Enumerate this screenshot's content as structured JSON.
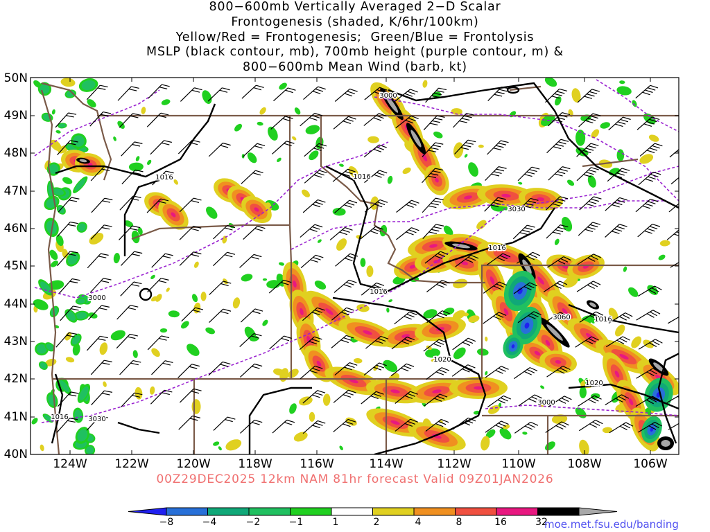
{
  "title_lines": [
    "800−600mb Vertically Averaged 2−D Scalar",
    "Frontogenesis (shaded, K/6hr/100km)",
    "Yellow/Red = Frontogenesis;  Green/Blue = Frontolysis",
    "MSLP (black contour, mb), 700mb height (purple contour, m) &",
    "800−600mb Mean Wind (barb, kt)"
  ],
  "lat_labels": [
    "50N",
    "49N",
    "48N",
    "47N",
    "46N",
    "45N",
    "44N",
    "43N",
    "42N",
    "41N",
    "40N"
  ],
  "lon_labels": [
    "124W",
    "122W",
    "120W",
    "118W",
    "116W",
    "114W",
    "112W",
    "110W",
    "108W",
    "106W"
  ],
  "footer": "00Z29DEC2025 12km NAM 81hr forecast Valid 09Z01JAN2026",
  "credit": "moe.met.fsu.edu/banding",
  "contour_labels": {
    "mslp": [
      "1016",
      "1016",
      "1016",
      "1016",
      "1016",
      "1016",
      "1020",
      "1020"
    ],
    "height": [
      "3000",
      "3000",
      "3030",
      "3060",
      "3030",
      "3000"
    ]
  },
  "colorbar": {
    "labels": [
      "−8",
      "−4",
      "−2",
      "−1",
      "1",
      "2",
      "4",
      "8",
      "16",
      "32"
    ],
    "colors": [
      "#2020f0",
      "#2870d8",
      "#10a878",
      "#20c060",
      "#20d020",
      "#ffffff",
      "#e0d020",
      "#f09020",
      "#f05040",
      "#e81880",
      "#000000",
      "#a8a8a8"
    ]
  },
  "colors": {
    "mslp": "#000000",
    "height": "#9a22d0",
    "border": "#7a5a48",
    "barb": "#000000",
    "footer": "#f07070",
    "credit": "#5050f0"
  }
}
